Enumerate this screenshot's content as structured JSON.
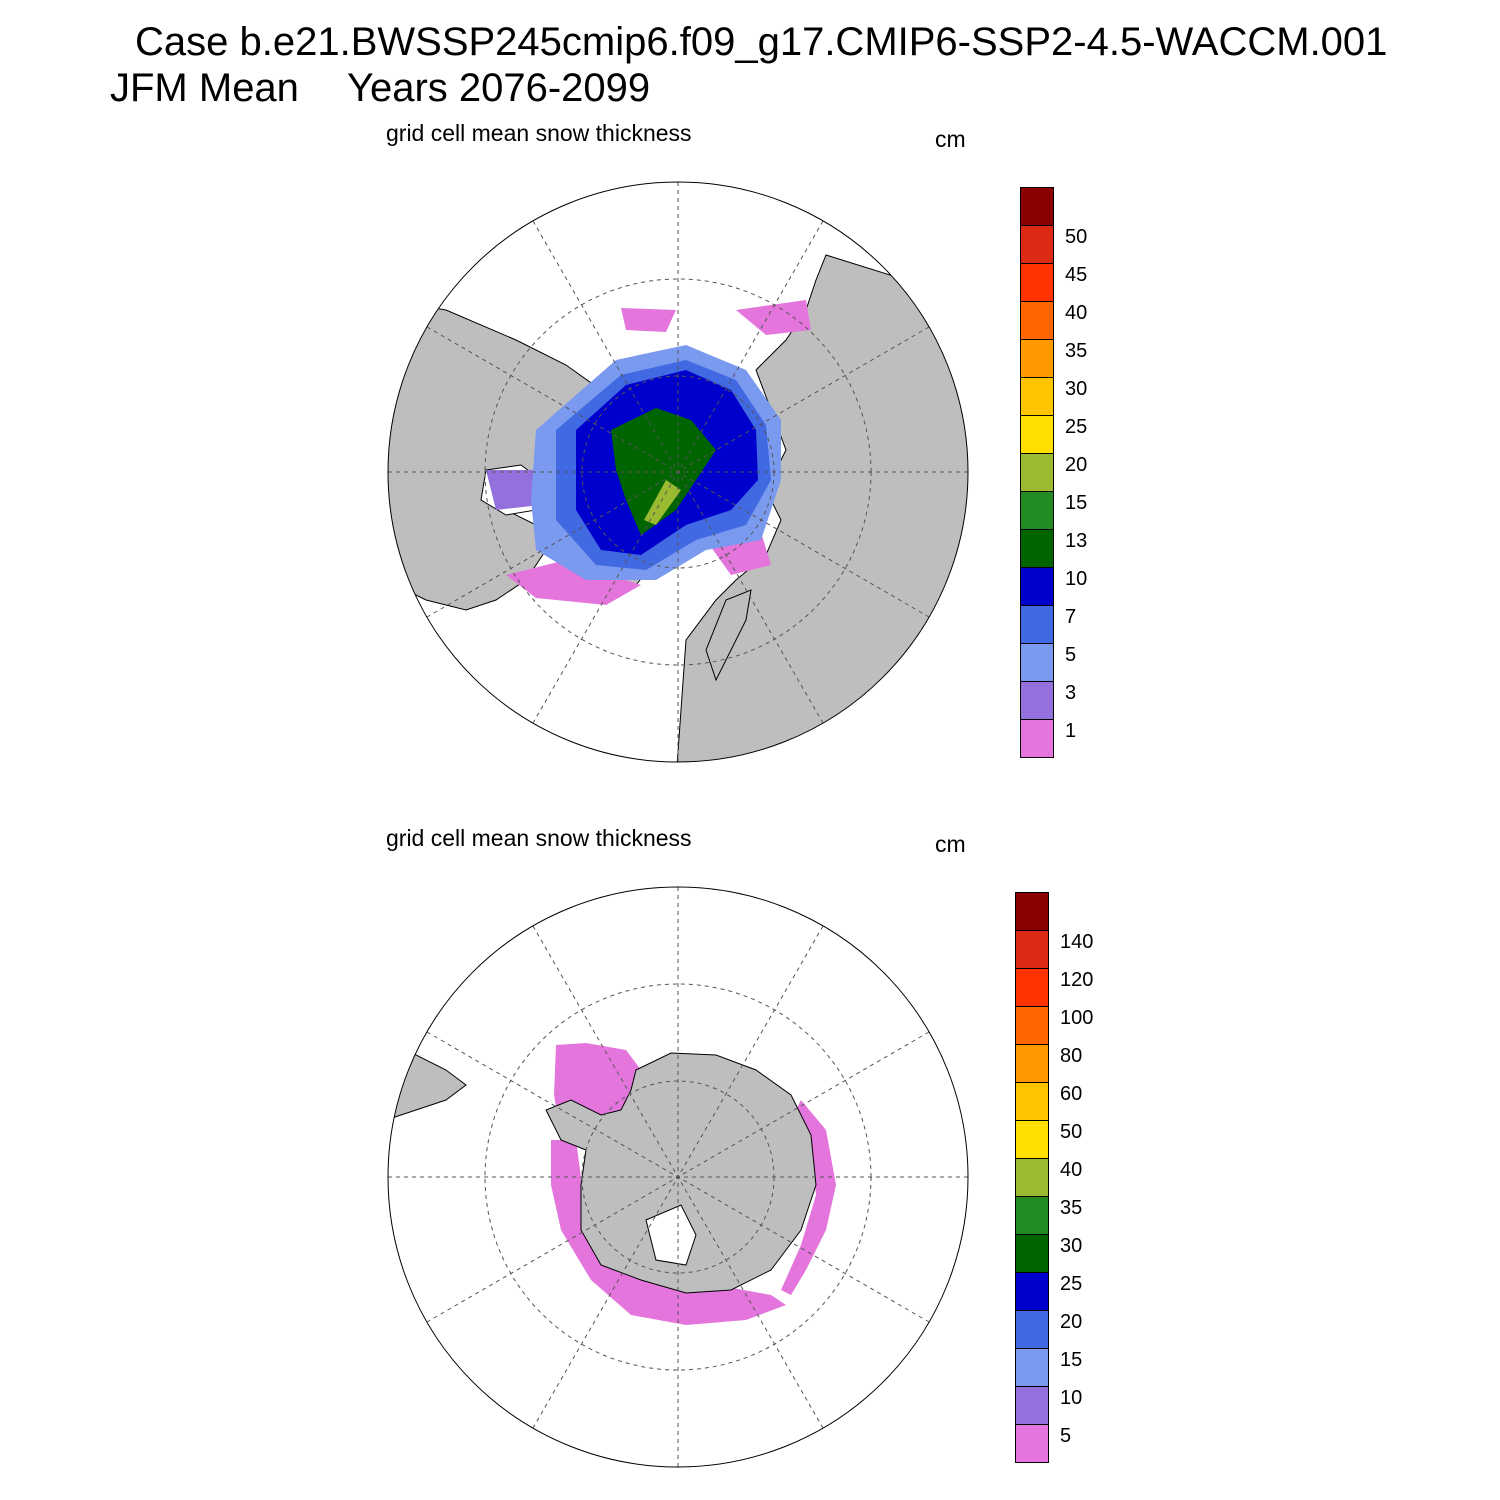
{
  "header": {
    "case_line": "Case b.e21.BWSSP245cmip6.f09_g17.CMIP6-SSP2-4.5-WACCM.001",
    "period": "JFM Mean",
    "years": "Years 2076-2099"
  },
  "panels": [
    {
      "title": "grid cell mean snow thickness",
      "units": "cm",
      "hemisphere": "north",
      "colorbar": {
        "labels": [
          "1",
          "3",
          "5",
          "7",
          "10",
          "13",
          "15",
          "20",
          "25",
          "30",
          "35",
          "40",
          "45",
          "50"
        ],
        "colors": [
          "#e375dc",
          "#9370db",
          "#7a9af0",
          "#4169e1",
          "#0000cd",
          "#006400",
          "#228b22",
          "#9aba32",
          "#ffde00",
          "#ffc400",
          "#ff9900",
          "#ff6600",
          "#ff3300",
          "#dc2a14",
          "#8b0000"
        ]
      }
    },
    {
      "title": "grid cell mean snow thickness",
      "units": "cm",
      "hemisphere": "south",
      "colorbar": {
        "labels": [
          "5",
          "10",
          "15",
          "20",
          "25",
          "30",
          "35",
          "40",
          "50",
          "60",
          "80",
          "100",
          "120",
          "140"
        ],
        "colors": [
          "#e375dc",
          "#9370db",
          "#7a9af0",
          "#4169e1",
          "#0000cd",
          "#006400",
          "#228b22",
          "#9aba32",
          "#ffde00",
          "#ffc400",
          "#ff9900",
          "#ff6600",
          "#ff3300",
          "#dc2a14",
          "#8b0000"
        ]
      }
    }
  ],
  "map_colors": {
    "land": "#bebebe",
    "ocean": "#ffffff",
    "grid": "#555555"
  }
}
